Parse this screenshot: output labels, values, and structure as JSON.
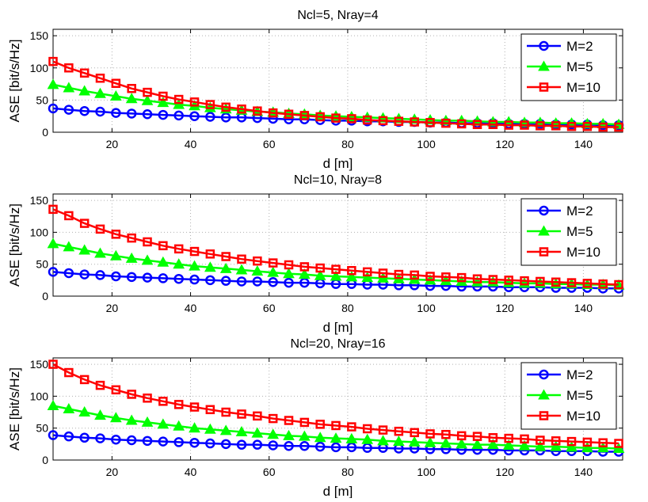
{
  "chart_data": [
    {
      "type": "line",
      "title": "Ncl=5, Nray=4",
      "xlabel": "d [m]",
      "ylabel": "ASE [bit/s/Hz]",
      "xlim": [
        5,
        150
      ],
      "ylim": [
        0,
        160
      ],
      "xticks": [
        20,
        40,
        60,
        80,
        100,
        120,
        140
      ],
      "yticks": [
        0,
        50,
        100,
        150
      ],
      "grid": true,
      "legend_position": "top-right",
      "x": [
        5,
        9,
        13,
        17,
        21,
        25,
        29,
        33,
        37,
        41,
        45,
        49,
        53,
        57,
        61,
        65,
        69,
        73,
        77,
        81,
        85,
        89,
        93,
        97,
        101,
        105,
        109,
        113,
        117,
        121,
        125,
        129,
        133,
        137,
        141,
        145,
        149
      ],
      "series": [
        {
          "name": "M=2",
          "color": "#0000ff",
          "marker": "circle",
          "values": [
            37,
            35,
            33,
            32,
            30,
            29,
            28,
            27,
            26,
            25,
            24,
            23,
            23,
            22,
            21,
            20,
            20,
            19,
            18,
            18,
            17,
            17,
            16,
            16,
            15,
            15,
            14,
            14,
            14,
            13,
            13,
            13,
            12,
            12,
            12,
            11,
            11
          ]
        },
        {
          "name": "M=5",
          "color": "#00ff00",
          "marker": "triangle",
          "values": [
            74,
            69,
            64,
            60,
            56,
            52,
            49,
            46,
            43,
            41,
            38,
            36,
            34,
            32,
            31,
            29,
            28,
            26,
            25,
            24,
            23,
            22,
            21,
            20,
            19,
            18,
            18,
            17,
            16,
            16,
            15,
            15,
            14,
            14,
            13,
            13,
            12
          ]
        },
        {
          "name": "M=10",
          "color": "#ff0000",
          "marker": "square",
          "values": [
            110,
            100,
            92,
            84,
            76,
            68,
            62,
            56,
            51,
            47,
            43,
            39,
            36,
            33,
            30,
            28,
            26,
            24,
            22,
            21,
            19,
            18,
            17,
            16,
            15,
            14,
            13,
            12,
            12,
            11,
            11,
            10,
            10,
            9,
            9,
            8,
            8
          ]
        }
      ]
    },
    {
      "type": "line",
      "title": "Ncl=10, Nray=8",
      "xlabel": "d [m]",
      "ylabel": "ASE [bit/s/Hz]",
      "xlim": [
        5,
        150
      ],
      "ylim": [
        0,
        160
      ],
      "xticks": [
        20,
        40,
        60,
        80,
        100,
        120,
        140
      ],
      "yticks": [
        0,
        50,
        100,
        150
      ],
      "grid": true,
      "legend_position": "top-right",
      "x": [
        5,
        9,
        13,
        17,
        21,
        25,
        29,
        33,
        37,
        41,
        45,
        49,
        53,
        57,
        61,
        65,
        69,
        73,
        77,
        81,
        85,
        89,
        93,
        97,
        101,
        105,
        109,
        113,
        117,
        121,
        125,
        129,
        133,
        137,
        141,
        145,
        149
      ],
      "series": [
        {
          "name": "M=2",
          "color": "#0000ff",
          "marker": "circle",
          "values": [
            38,
            36,
            34,
            33,
            31,
            30,
            29,
            28,
            27,
            26,
            25,
            24,
            23,
            23,
            22,
            21,
            21,
            20,
            19,
            19,
            18,
            18,
            17,
            17,
            16,
            16,
            15,
            15,
            15,
            14,
            14,
            14,
            13,
            13,
            13,
            12,
            12
          ]
        },
        {
          "name": "M=5",
          "color": "#00ff00",
          "marker": "triangle",
          "values": [
            82,
            77,
            72,
            67,
            63,
            59,
            56,
            53,
            50,
            47,
            45,
            43,
            41,
            39,
            37,
            35,
            34,
            32,
            31,
            30,
            29,
            28,
            27,
            26,
            25,
            24,
            23,
            22,
            22,
            21,
            20,
            20,
            19,
            19,
            18,
            18,
            17
          ]
        },
        {
          "name": "M=10",
          "color": "#ff0000",
          "marker": "square",
          "values": [
            136,
            126,
            114,
            105,
            97,
            91,
            85,
            79,
            74,
            70,
            66,
            62,
            58,
            55,
            52,
            49,
            46,
            44,
            42,
            40,
            38,
            36,
            34,
            33,
            31,
            30,
            29,
            27,
            26,
            25,
            24,
            23,
            22,
            21,
            20,
            19,
            18
          ]
        }
      ]
    },
    {
      "type": "line",
      "title": "Ncl=20, Nray=16",
      "xlabel": "d [m]",
      "ylabel": "ASE [bit/s/Hz]",
      "xlim": [
        5,
        150
      ],
      "ylim": [
        0,
        160
      ],
      "xticks": [
        20,
        40,
        60,
        80,
        100,
        120,
        140
      ],
      "yticks": [
        0,
        50,
        100,
        150
      ],
      "grid": true,
      "legend_position": "top-right",
      "x": [
        5,
        9,
        13,
        17,
        21,
        25,
        29,
        33,
        37,
        41,
        45,
        49,
        53,
        57,
        61,
        65,
        69,
        73,
        77,
        81,
        85,
        89,
        93,
        97,
        101,
        105,
        109,
        113,
        117,
        121,
        125,
        129,
        133,
        137,
        141,
        145,
        149
      ],
      "series": [
        {
          "name": "M=2",
          "color": "#0000ff",
          "marker": "circle",
          "values": [
            39,
            37,
            35,
            34,
            32,
            31,
            30,
            29,
            28,
            27,
            26,
            25,
            24,
            24,
            23,
            22,
            22,
            21,
            20,
            20,
            19,
            19,
            18,
            18,
            17,
            17,
            16,
            16,
            16,
            15,
            15,
            15,
            14,
            14,
            14,
            13,
            13
          ]
        },
        {
          "name": "M=5",
          "color": "#00ff00",
          "marker": "triangle",
          "values": [
            85,
            80,
            75,
            70,
            66,
            62,
            59,
            56,
            53,
            50,
            48,
            46,
            44,
            42,
            40,
            38,
            37,
            35,
            34,
            33,
            32,
            30,
            29,
            28,
            27,
            26,
            25,
            24,
            24,
            23,
            22,
            21,
            21,
            20,
            19,
            19,
            18
          ]
        },
        {
          "name": "M=10",
          "color": "#ff0000",
          "marker": "square",
          "values": [
            150,
            137,
            126,
            117,
            110,
            103,
            97,
            92,
            87,
            83,
            79,
            75,
            72,
            69,
            65,
            62,
            59,
            56,
            54,
            52,
            49,
            47,
            45,
            43,
            41,
            40,
            38,
            37,
            35,
            34,
            33,
            31,
            30,
            29,
            28,
            27,
            26
          ]
        }
      ]
    }
  ]
}
